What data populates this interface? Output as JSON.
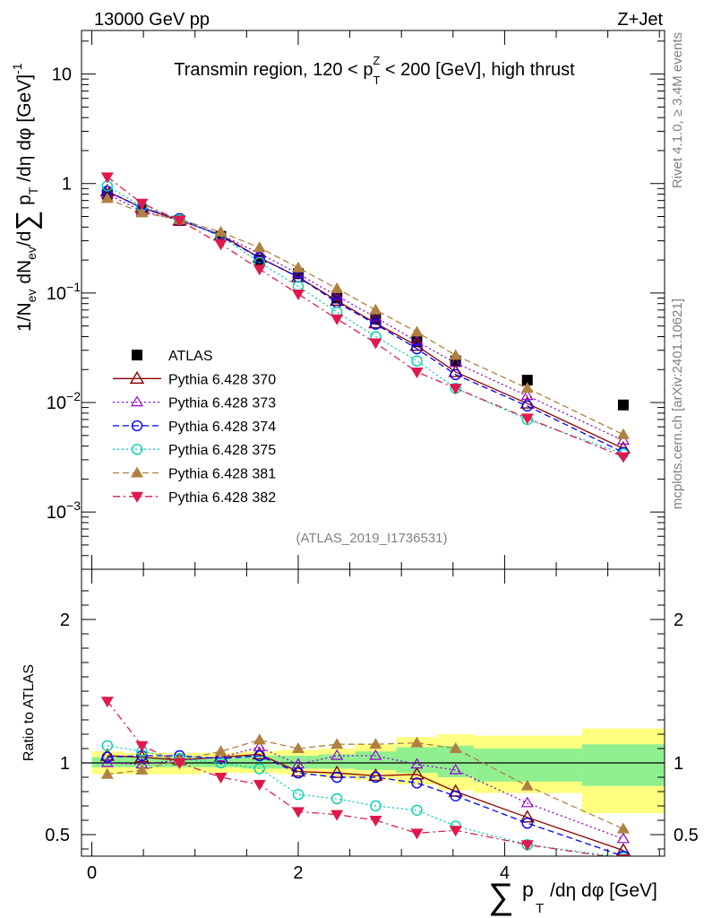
{
  "header": {
    "energy": "13000 GeV pp",
    "process": "Z+Jet",
    "side_rivet": "Rivet 4.1.0, ≥ 3.4M events",
    "side_mcplots": "mcplots.cern.ch [arXiv:2401.10621]",
    "analysis_id": "(ATLAS_2019_I1736531)"
  },
  "colors": {
    "ATLAS": "#000000",
    "p370": "#8b0000",
    "p373": "#9400d3",
    "p374": "#0000ff",
    "p375": "#00d0b0",
    "p381": "#b08040",
    "p382": "#e0184c",
    "band_inner": "#90f090",
    "band_outer": "#ffff80"
  },
  "chart_data": [
    {
      "type": "scatter",
      "title": "Transmin region, 120 < p_T^Z < 200 [GeV], high thrust",
      "title_pre": "Transmin region, 120 < p",
      "title_sup": "Z",
      "title_sub": "T",
      "title_post": " < 200 [GeV], high thrust",
      "ylabel": "1/N_ev dN_ev/d∑p_T/dη dφ [GeV]^-1",
      "yscale": "log",
      "ylim": [
        0.0003,
        25
      ],
      "xlim": [
        -0.1,
        5.55
      ],
      "yticks": [
        {
          "v": 10,
          "base": "10",
          "exp": ""
        },
        {
          "v": 1,
          "base": "1",
          "exp": ""
        },
        {
          "v": 0.1,
          "base": "10",
          "exp": "−1"
        },
        {
          "v": 0.01,
          "base": "10",
          "exp": "−2"
        },
        {
          "v": 0.001,
          "base": "10",
          "exp": "−3"
        }
      ],
      "x": [
        0.15,
        0.485,
        0.85,
        1.25,
        1.625,
        2.0,
        2.375,
        2.75,
        3.15,
        3.525,
        4.22,
        5.15
      ],
      "series": [
        {
          "name": "ATLAS",
          "key": "ATLAS",
          "marker": "square",
          "dash": "none",
          "values": [
            0.8,
            0.57,
            0.46,
            0.33,
            0.2,
            0.15,
            0.09,
            0.058,
            0.036,
            0.024,
            0.016,
            0.0095
          ]
        },
        {
          "name": "Pythia 6.428 370",
          "key": "p370",
          "marker": "triangle-open",
          "dash": "solid",
          "values": [
            0.85,
            0.6,
            0.46,
            0.34,
            0.21,
            0.14,
            0.085,
            0.053,
            0.033,
            0.019,
            0.0098,
            0.0038
          ]
        },
        {
          "name": "Pythia 6.428 373",
          "key": "p373",
          "marker": "triangle-open-small",
          "dash": "dotted",
          "values": [
            0.8,
            0.56,
            0.46,
            0.34,
            0.23,
            0.15,
            0.094,
            0.06,
            0.036,
            0.023,
            0.0115,
            0.0045
          ]
        },
        {
          "name": "Pythia 6.428 374",
          "key": "p374",
          "marker": "circle-open",
          "dash": "dashed",
          "values": [
            0.85,
            0.6,
            0.48,
            0.33,
            0.21,
            0.14,
            0.082,
            0.052,
            0.031,
            0.018,
            0.0093,
            0.0035
          ]
        },
        {
          "name": "Pythia 6.428 375",
          "key": "p375",
          "marker": "circle-open",
          "dash": "dotted",
          "values": [
            0.95,
            0.62,
            0.47,
            0.33,
            0.19,
            0.115,
            0.067,
            0.04,
            0.024,
            0.0135,
            0.007,
            0.0034
          ]
        },
        {
          "name": "Pythia 6.428 381",
          "key": "p381",
          "marker": "triangle-filled",
          "dash": "dashed",
          "values": [
            0.73,
            0.54,
            0.47,
            0.36,
            0.26,
            0.17,
            0.11,
            0.07,
            0.044,
            0.027,
            0.0135,
            0.0051
          ]
        },
        {
          "name": "Pythia 6.428 382",
          "key": "p382",
          "marker": "triangle-down-filled",
          "dash": "dashdot",
          "values": [
            1.15,
            0.66,
            0.46,
            0.28,
            0.165,
            0.098,
            0.058,
            0.035,
            0.019,
            0.0135,
            0.0072,
            0.0032
          ]
        }
      ]
    },
    {
      "type": "scatter",
      "title": "",
      "xlabel": "∑p_T/dη dφ [GeV]",
      "ylabel": "Ratio to ATLAS",
      "ylim": [
        0.35,
        2.35
      ],
      "xlim": [
        -0.1,
        5.55
      ],
      "yticks": [
        0.5,
        1,
        2
      ],
      "xticks": [
        0,
        2,
        4
      ],
      "reference": 1,
      "bands": [
        {
          "x0": 0.0,
          "x1": 0.3,
          "inner": [
            0.97,
            1.04
          ],
          "outer": [
            0.92,
            1.08
          ]
        },
        {
          "x0": 0.3,
          "x1": 0.65,
          "inner": [
            0.97,
            1.04
          ],
          "outer": [
            0.92,
            1.07
          ]
        },
        {
          "x0": 0.65,
          "x1": 1.05,
          "inner": [
            0.97,
            1.04
          ],
          "outer": [
            0.92,
            1.07
          ]
        },
        {
          "x0": 1.05,
          "x1": 1.45,
          "inner": [
            0.97,
            1.04
          ],
          "outer": [
            0.93,
            1.07
          ]
        },
        {
          "x0": 1.45,
          "x1": 1.8,
          "inner": [
            0.96,
            1.05
          ],
          "outer": [
            0.93,
            1.08
          ]
        },
        {
          "x0": 1.8,
          "x1": 2.2,
          "inner": [
            0.96,
            1.05
          ],
          "outer": [
            0.92,
            1.09
          ]
        },
        {
          "x0": 2.2,
          "x1": 2.55,
          "inner": [
            0.96,
            1.06
          ],
          "outer": [
            0.9,
            1.1
          ]
        },
        {
          "x0": 2.55,
          "x1": 2.95,
          "inner": [
            0.95,
            1.08
          ],
          "outer": [
            0.88,
            1.13
          ]
        },
        {
          "x0": 2.95,
          "x1": 3.35,
          "inner": [
            0.93,
            1.11
          ],
          "outer": [
            0.85,
            1.18
          ]
        },
        {
          "x0": 3.35,
          "x1": 3.7,
          "inner": [
            0.9,
            1.12
          ],
          "outer": [
            0.81,
            1.2
          ]
        },
        {
          "x0": 3.7,
          "x1": 4.75,
          "inner": [
            0.87,
            1.1
          ],
          "outer": [
            0.79,
            1.19
          ]
        },
        {
          "x0": 4.75,
          "x1": 5.55,
          "inner": [
            0.84,
            1.13
          ],
          "outer": [
            0.65,
            1.24
          ]
        }
      ],
      "x": [
        0.15,
        0.485,
        0.85,
        1.25,
        1.625,
        2.0,
        2.375,
        2.75,
        3.15,
        3.525,
        4.22,
        5.15
      ],
      "series": [
        {
          "name": "Pythia 6.428 370",
          "key": "p370",
          "marker": "triangle-open",
          "dash": "solid",
          "values": [
            1.05,
            1.04,
            1.02,
            1.04,
            1.06,
            0.94,
            0.93,
            0.91,
            0.92,
            0.8,
            0.62,
            0.39
          ]
        },
        {
          "name": "Pythia 6.428 373",
          "key": "p373",
          "marker": "triangle-open-small",
          "dash": "dotted",
          "values": [
            1.0,
            0.99,
            1.02,
            1.04,
            1.11,
            0.99,
            1.05,
            1.05,
            0.99,
            0.95,
            0.72,
            0.47
          ]
        },
        {
          "name": "Pythia 6.428 374",
          "key": "p374",
          "marker": "circle-open",
          "dash": "dashed",
          "values": [
            1.04,
            1.05,
            1.05,
            1.03,
            1.05,
            0.93,
            0.9,
            0.9,
            0.86,
            0.77,
            0.58,
            0.35
          ]
        },
        {
          "name": "Pythia 6.428 375",
          "key": "p375",
          "marker": "circle-open",
          "dash": "dotted",
          "values": [
            1.12,
            1.08,
            1.03,
            1.0,
            0.96,
            0.78,
            0.75,
            0.7,
            0.67,
            0.56,
            0.43,
            0.34
          ]
        },
        {
          "name": "Pythia 6.428 381",
          "key": "p381",
          "marker": "triangle-filled",
          "dash": "dashed",
          "values": [
            0.92,
            0.95,
            1.02,
            1.08,
            1.16,
            1.1,
            1.13,
            1.13,
            1.14,
            1.1,
            0.84,
            0.54
          ]
        },
        {
          "name": "Pythia 6.428 382",
          "key": "p382",
          "marker": "triangle-down-filled",
          "dash": "dashdot",
          "values": [
            1.43,
            1.12,
            1.0,
            0.9,
            0.85,
            0.66,
            0.64,
            0.6,
            0.51,
            0.53,
            0.43,
            0.33
          ]
        }
      ]
    }
  ]
}
